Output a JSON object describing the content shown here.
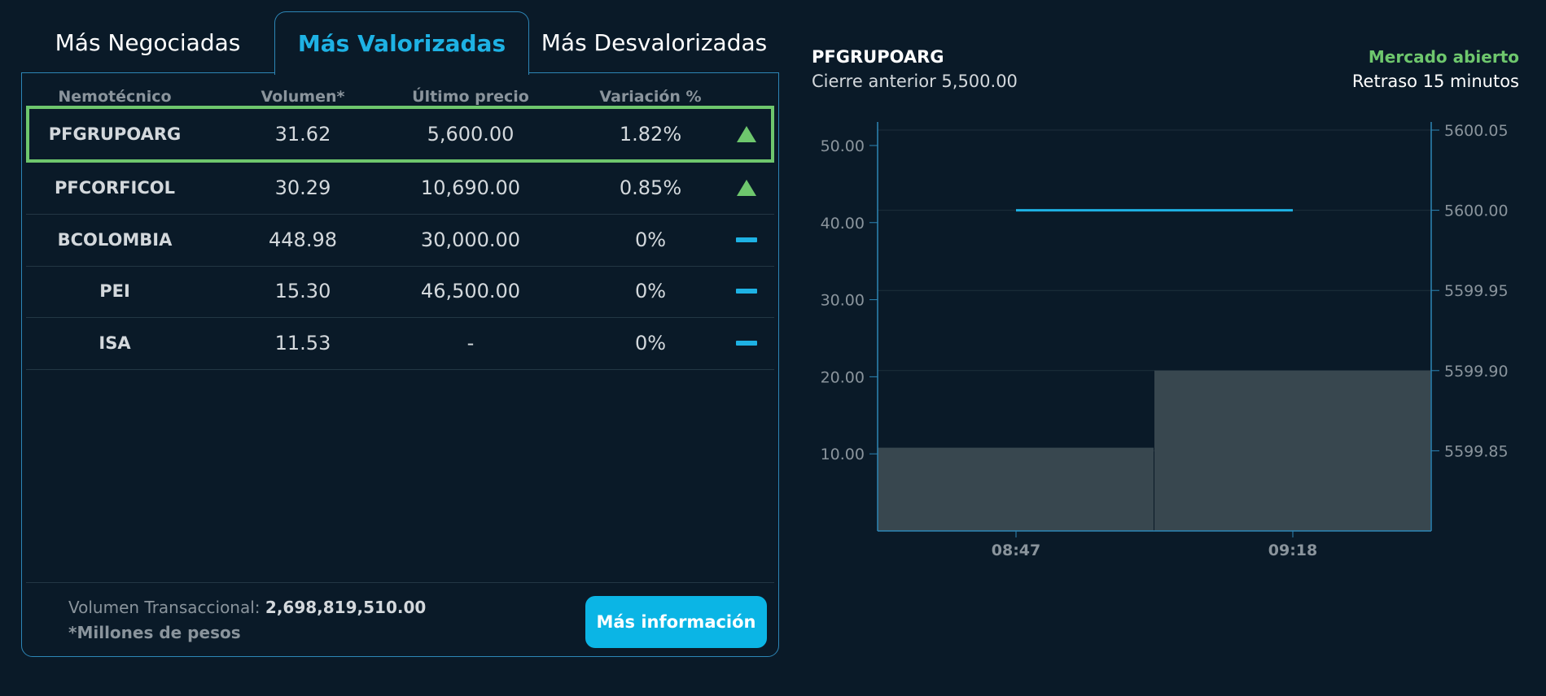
{
  "tabs": [
    {
      "label": "Más Negociadas",
      "active": false
    },
    {
      "label": "Más Valorizadas",
      "active": true
    },
    {
      "label": "Más Desvalorizadas",
      "active": false
    }
  ],
  "table": {
    "headers": [
      "Nemotécnico",
      "Volumen*",
      "Último precio",
      "Variación %"
    ],
    "rows": [
      {
        "ticker": "PFGRUPOARG",
        "volume": "31.62",
        "price": "5,600.00",
        "change": "1.82%",
        "trend": "up",
        "selected": true
      },
      {
        "ticker": "PFCORFICOL",
        "volume": "30.29",
        "price": "10,690.00",
        "change": "0.85%",
        "trend": "up",
        "selected": false
      },
      {
        "ticker": "BCOLOMBIA",
        "volume": "448.98",
        "price": "30,000.00",
        "change": "0%",
        "trend": "flat",
        "selected": false
      },
      {
        "ticker": "PEI",
        "volume": "15.30",
        "price": "46,500.00",
        "change": "0%",
        "trend": "flat",
        "selected": false
      },
      {
        "ticker": "ISA",
        "volume": "11.53",
        "price": "-",
        "change": "0%",
        "trend": "flat",
        "selected": false
      }
    ]
  },
  "footer": {
    "volume_label": "Volumen Transaccional: ",
    "volume_value": "2,698,819,510.00",
    "note": "*Millones de pesos",
    "button_label": "Más información"
  },
  "chart_header": {
    "ticker": "PFGRUPOARG",
    "previous_close": "Cierre anterior 5,500.00",
    "market_status": "Mercado abierto",
    "delay": "Retraso 15 minutos"
  },
  "colors": {
    "background": "#0a1a28",
    "accent": "#1eb2e4",
    "positive": "#6ec76d",
    "bar": "#38474f",
    "border": "#2d86b6"
  },
  "chart_data": {
    "type": "bar",
    "categories": [
      "08:47",
      "09:18"
    ],
    "series": [
      {
        "kind": "bar",
        "axis": "left",
        "values": [
          10.8,
          20.8
        ]
      },
      {
        "kind": "line",
        "axis": "right",
        "values": [
          5600.0,
          5600.0
        ]
      }
    ],
    "y_left": {
      "ticks": [
        "10.00",
        "20.00",
        "30.00",
        "40.00",
        "50.00"
      ],
      "range": [
        0,
        52
      ]
    },
    "y_right": {
      "ticks": [
        "5599.85",
        "5599.90",
        "5599.95",
        "5600.00",
        "5600.05"
      ],
      "range": [
        5599.8,
        5600.05
      ]
    },
    "grid": true
  }
}
